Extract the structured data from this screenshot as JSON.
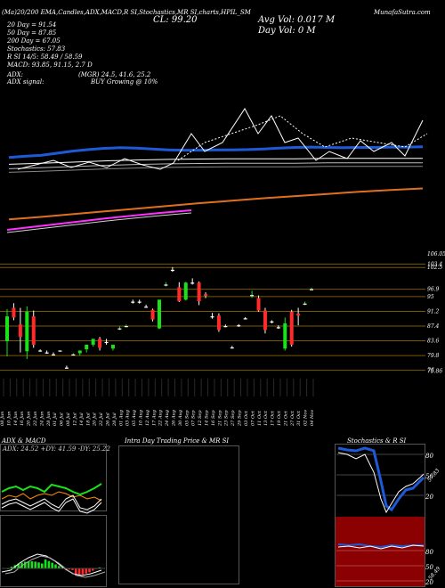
{
  "header": {
    "top_line": "(Ma)20/200 EMA,Candles,ADX,MACD,R SI,Stochastics,MR SI,charts,HPIL_SM",
    "price_label": "CL: 99.20",
    "avg_vol_label": "Avg Vol: 0.017 M",
    "day_vol_label": "Day Vol: 0   M",
    "site": "MunafaSutra.com"
  },
  "left_info": {
    "ema20": "20  Day = 91.54",
    "ema50": "50  Day = 87.85",
    "ema200": "200  Day = 67.05",
    "stoch": "Stochastics: 57.83",
    "rsi": "R          SI 14/5: 58.49 / 58.59",
    "macd": "MACD: 93.85, 91.15, 2.7 D"
  },
  "adx": {
    "line1_label": "ADX:",
    "line1_value": "(MGR) 24.5, 41.6, 25.2",
    "line2_label": "ADX signal:",
    "line2_value": "BUY Growing @ 10%"
  },
  "price_axis": [
    "106.05",
    "103.4",
    "102.5",
    "96.9",
    "95",
    "91.2",
    "87.4",
    "83.6",
    "79.8",
    "76",
    "75.86"
  ],
  "dates": [
    "08 Jun",
    "09 Jun",
    "10 Jun",
    "13 Jun",
    "14 Jun",
    "15 Jun",
    "16 Jun",
    "17 Jun",
    "20 Jun",
    "21 Jun",
    "22 Jun",
    "23 Jun",
    "24 Jun",
    "27 Jun",
    "28 Jun",
    "29 Jun",
    "01 Jul",
    "04 Jul",
    "06 Jul",
    "07 Jul",
    "08 Jul",
    "11 Jul",
    "12 Jul",
    "13 Jul",
    "14 Jul",
    "15 Jul",
    "18 Jul",
    "19 Jul",
    "20 Jul",
    "21 Jul",
    "22 Jul",
    "25 Jul",
    "26 Jul",
    "27 Jul",
    "28 Jul",
    "29 Jul",
    "01 Aug",
    "02 Aug",
    "03 Aug",
    "04 Aug",
    "05 Aug",
    "08 Aug",
    "10 Aug",
    "11 Aug",
    "12 Aug",
    "16 Aug",
    "17 Aug",
    "18 Aug",
    "22 Aug",
    "23 Aug",
    "24 Aug",
    "25 Aug",
    "26 Aug",
    "29 Aug",
    "30 Aug",
    "01 Sep",
    "05 Sep",
    "06 Sep",
    "07 Sep",
    "08 Sep",
    "12 Sep",
    "13 Sep",
    "14 Sep",
    "15 Sep",
    "16 Sep",
    "19 Sep",
    "21 Sep",
    "22 Sep",
    "23 Sep",
    "26 Sep",
    "27 Sep",
    "28 Sep",
    "29 Sep",
    "30 Sep",
    "03 Oct",
    "05 Oct",
    "07 Oct",
    "10 Oct",
    "11 Oct",
    "12 Oct",
    "13 Oct",
    "14 Oct",
    "17 Oct",
    "18 Oct",
    "19 Oct",
    "20 Oct",
    "21 Oct",
    "25 Oct",
    "27 Oct",
    "28 Oct",
    "31 Oct",
    "01 Nov",
    "02 Nov",
    "03 Nov",
    "04 Nov"
  ],
  "panels": {
    "adx_macd_title": "ADX & MACD",
    "adx_values": "ADX: 24.52  +DY: 41.59  -DY: 25.22",
    "intraday_title": "Intra Day Trading Price & MR                SI",
    "stoch_title": "Stochastics & R                SI",
    "stoch_axis": [
      "80",
      "50",
      "20"
    ],
    "stoch_value": "57.83",
    "rsi_axis": [
      "80",
      "50",
      "20"
    ],
    "rsi_value": "58.49"
  },
  "chart_data": {
    "type": "candlestick",
    "ylim": [
      75,
      106
    ],
    "grid": true,
    "candles": [
      {
        "o": 83.5,
        "h": 91.8,
        "l": 79.6,
        "c": 89.9,
        "up": true
      },
      {
        "o": 92.1,
        "h": 93.3,
        "l": 88.9,
        "c": 89.6,
        "up": false
      },
      {
        "o": 87.8,
        "h": 92.1,
        "l": 80.6,
        "c": 84.6,
        "up": false
      },
      {
        "o": 80.9,
        "h": 92.5,
        "l": 78.9,
        "c": 91.1,
        "up": true
      },
      {
        "o": 89.9,
        "h": 91.4,
        "l": 81.8,
        "c": 82.6,
        "up": false
      },
      {
        "o": 81.1,
        "h": 81.4,
        "l": 80.8,
        "c": 81.1,
        "up": false
      },
      {
        "o": 80.6,
        "h": 81.1,
        "l": 80.3,
        "c": 80.6,
        "up": false
      },
      {
        "o": 80.1,
        "h": 80.6,
        "l": 79.8,
        "c": 80.1,
        "up": false
      },
      {
        "o": 81.1,
        "h": 81.1,
        "l": 80.8,
        "c": 81.1,
        "up": false
      },
      {
        "o": 76.7,
        "h": 77.2,
        "l": 76.4,
        "c": 76.7,
        "up": false
      },
      {
        "o": 80.1,
        "h": 80.4,
        "l": 79.8,
        "c": 80.1,
        "up": true
      },
      {
        "o": 80.4,
        "h": 81.1,
        "l": 79.8,
        "c": 81.1,
        "up": true
      },
      {
        "o": 81.4,
        "h": 82.6,
        "l": 80.6,
        "c": 82.6,
        "up": true
      },
      {
        "o": 82.6,
        "h": 84.1,
        "l": 82.1,
        "c": 84.1,
        "up": true
      },
      {
        "o": 84.1,
        "h": 84.6,
        "l": 81.1,
        "c": 81.8,
        "up": false
      },
      {
        "o": 83.3,
        "h": 84.1,
        "l": 82.6,
        "c": 83.3,
        "up": false
      },
      {
        "o": 81.6,
        "h": 82.6,
        "l": 81.1,
        "c": 82.6,
        "up": true
      },
      {
        "o": 86.8,
        "h": 87.3,
        "l": 86.4,
        "c": 86.8,
        "up": true
      },
      {
        "o": 87.4,
        "h": 87.8,
        "l": 87.1,
        "c": 87.4,
        "up": true
      },
      {
        "o": 93.7,
        "h": 94.2,
        "l": 93.2,
        "c": 93.7,
        "up": false
      },
      {
        "o": 93.7,
        "h": 94.2,
        "l": 93.2,
        "c": 93.7,
        "up": false
      },
      {
        "o": 92.4,
        "h": 92.9,
        "l": 92.1,
        "c": 92.4,
        "up": false
      },
      {
        "o": 91.6,
        "h": 91.9,
        "l": 88.6,
        "c": 89.1,
        "up": false
      },
      {
        "o": 86.8,
        "h": 94.2,
        "l": 86.6,
        "c": 94.2,
        "up": true
      },
      {
        "o": 98.1,
        "h": 98.7,
        "l": 97.6,
        "c": 98.1,
        "up": true
      },
      {
        "o": 101.9,
        "h": 102.6,
        "l": 101.4,
        "c": 101.9,
        "up": false
      },
      {
        "o": 97.4,
        "h": 98.7,
        "l": 93.6,
        "c": 93.8,
        "up": false
      },
      {
        "o": 94.2,
        "h": 98.8,
        "l": 94.0,
        "c": 98.6,
        "up": true
      },
      {
        "o": 98.6,
        "h": 99.7,
        "l": 98.1,
        "c": 98.6,
        "up": false
      },
      {
        "o": 98.6,
        "h": 98.9,
        "l": 92.8,
        "c": 93.8,
        "up": false
      },
      {
        "o": 95.6,
        "h": 96.1,
        "l": 94.6,
        "c": 95.2,
        "up": false
      },
      {
        "o": 89.9,
        "h": 90.8,
        "l": 89.3,
        "c": 89.9,
        "up": false
      },
      {
        "o": 90.1,
        "h": 90.7,
        "l": 85.9,
        "c": 86.4,
        "up": false
      },
      {
        "o": 87.4,
        "h": 87.8,
        "l": 87.1,
        "c": 87.4,
        "up": false
      },
      {
        "o": 81.9,
        "h": 82.3,
        "l": 81.6,
        "c": 81.9,
        "up": false
      },
      {
        "o": 87.6,
        "h": 87.9,
        "l": 87.2,
        "c": 87.6,
        "up": false
      },
      {
        "o": 89.4,
        "h": 89.7,
        "l": 89.1,
        "c": 89.4,
        "up": false
      },
      {
        "o": 95.4,
        "h": 96.5,
        "l": 94.7,
        "c": 95.4,
        "up": true
      },
      {
        "o": 94.6,
        "h": 95.3,
        "l": 91.1,
        "c": 91.4,
        "up": false
      },
      {
        "o": 91.4,
        "h": 92.1,
        "l": 85.5,
        "c": 86.4,
        "up": false
      },
      {
        "o": 88.6,
        "h": 88.9,
        "l": 88.1,
        "c": 88.6,
        "up": false
      },
      {
        "o": 87.1,
        "h": 87.6,
        "l": 86.7,
        "c": 87.1,
        "up": false
      },
      {
        "o": 81.6,
        "h": 89.6,
        "l": 81.1,
        "c": 88.1,
        "up": true
      },
      {
        "o": 91.1,
        "h": 91.6,
        "l": 82.1,
        "c": 82.6,
        "up": false
      },
      {
        "o": 90.1,
        "h": 92.1,
        "l": 87.6,
        "c": 90.6,
        "up": false
      },
      {
        "o": 93.2,
        "h": 93.7,
        "l": 92.8,
        "c": 93.2,
        "up": true
      },
      {
        "o": 96.9,
        "h": 97.3,
        "l": 96.6,
        "c": 96.9,
        "up": true
      }
    ],
    "ema": [
      {
        "name": "20  Day",
        "color": "#1e5ad8",
        "values": [
          88.2,
          88.6,
          88.9,
          89.6,
          90.3,
          90.8,
          91.2,
          91.4,
          91.3,
          91.0,
          90.7,
          90.6,
          90.6,
          90.7,
          90.7,
          90.8,
          91.0,
          91.3,
          91.5,
          91.6,
          91.5,
          91.4,
          91.5,
          91.5,
          91.6,
          91.6,
          91.7
        ]
      },
      {
        "name": "50  Day",
        "color": "#ffffff",
        "values": [
          86.0,
          86.3,
          86.7,
          87.1,
          87.4,
          87.6,
          87.7,
          87.8,
          87.8,
          87.8,
          87.9,
          87.9,
          87.9,
          87.9
        ]
      },
      {
        "name": "200  Day",
        "color": "#e07020",
        "values": [
          68.0,
          68.8,
          69.7,
          70.6,
          71.5,
          72.4,
          73.3,
          74.1,
          74.9,
          75.6,
          76.3,
          77.0,
          77.6,
          78.1
        ]
      }
    ]
  }
}
